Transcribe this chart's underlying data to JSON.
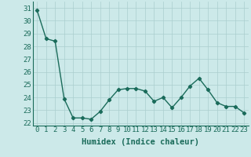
{
  "x": [
    0,
    1,
    2,
    3,
    4,
    5,
    6,
    7,
    8,
    9,
    10,
    11,
    12,
    13,
    14,
    15,
    16,
    17,
    18,
    19,
    20,
    21,
    22,
    23
  ],
  "y": [
    30.8,
    28.6,
    28.4,
    23.9,
    22.4,
    22.4,
    22.3,
    22.9,
    23.8,
    24.6,
    24.7,
    24.7,
    24.5,
    23.7,
    24.0,
    23.2,
    24.0,
    24.9,
    25.5,
    24.6,
    23.6,
    23.3,
    23.3,
    22.8
  ],
  "line_color": "#1a6b5a",
  "marker": "D",
  "marker_size": 2.2,
  "linewidth": 1.0,
  "xlabel": "Humidex (Indice chaleur)",
  "xlabel_fontsize": 7.5,
  "ylabel_ticks": [
    22,
    23,
    24,
    25,
    26,
    27,
    28,
    29,
    30,
    31
  ],
  "ylim": [
    21.8,
    31.5
  ],
  "xlim": [
    -0.5,
    23.5
  ],
  "bg_color": "#cce9e9",
  "grid_color": "#aacece",
  "tick_fontsize": 6.5
}
